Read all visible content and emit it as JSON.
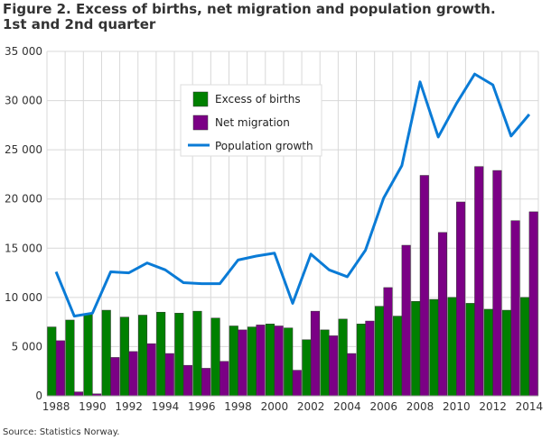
{
  "title_line1": "Figure 2. Excess of births, net migration and population growth.",
  "title_line2": "1st and 2nd quarter",
  "source": "Source: Statistics Norway.",
  "chart_data": {
    "type": "bar",
    "categories": [
      "1988",
      "1989",
      "1990",
      "1991",
      "1992",
      "1993",
      "1994",
      "1995",
      "1996",
      "1997",
      "1998",
      "1999",
      "2000",
      "2001",
      "2002",
      "2003",
      "2004",
      "2005",
      "2006",
      "2007",
      "2008",
      "2009",
      "2010",
      "2011",
      "2012",
      "2013",
      "2014"
    ],
    "x_tick_labels": [
      "1988",
      "1990",
      "1992",
      "1994",
      "1996",
      "1998",
      "2000",
      "2002",
      "2004",
      "2006",
      "2008",
      "2010",
      "2012",
      "2014"
    ],
    "y_tick_labels": [
      "0",
      "5 000",
      "10 000",
      "15 000",
      "20 000",
      "25 000",
      "30 000",
      "35 000"
    ],
    "ylim": [
      0,
      35000
    ],
    "grid": true,
    "legend_placement": "top-center",
    "series": [
      {
        "name": "Excess of births",
        "type": "bar",
        "color": "#008000",
        "values": [
          7000,
          7700,
          8300,
          8700,
          8000,
          8200,
          8500,
          8400,
          8600,
          7900,
          7100,
          7000,
          7300,
          6900,
          5700,
          6700,
          7800,
          7300,
          9100,
          8100,
          9600,
          9800,
          10000,
          9400,
          8800,
          8700,
          10000
        ]
      },
      {
        "name": "Net migration",
        "type": "bar",
        "color": "#7b0085",
        "values": [
          5600,
          400,
          200,
          3900,
          4500,
          5300,
          4300,
          3100,
          2800,
          3500,
          6700,
          7200,
          7100,
          2600,
          8600,
          6100,
          4300,
          7600,
          11000,
          15300,
          22400,
          16600,
          19700,
          23300,
          22900,
          17800,
          18700
        ]
      },
      {
        "name": "Population growth",
        "type": "line",
        "color": "#0a7bd6",
        "values": [
          12600,
          8100,
          8400,
          12600,
          12500,
          13500,
          12800,
          11500,
          11400,
          11400,
          13800,
          14200,
          14500,
          9400,
          14400,
          12800,
          12100,
          14800,
          20100,
          23400,
          31900,
          26300,
          29700,
          32700,
          31600,
          26400,
          28600
        ]
      }
    ]
  }
}
